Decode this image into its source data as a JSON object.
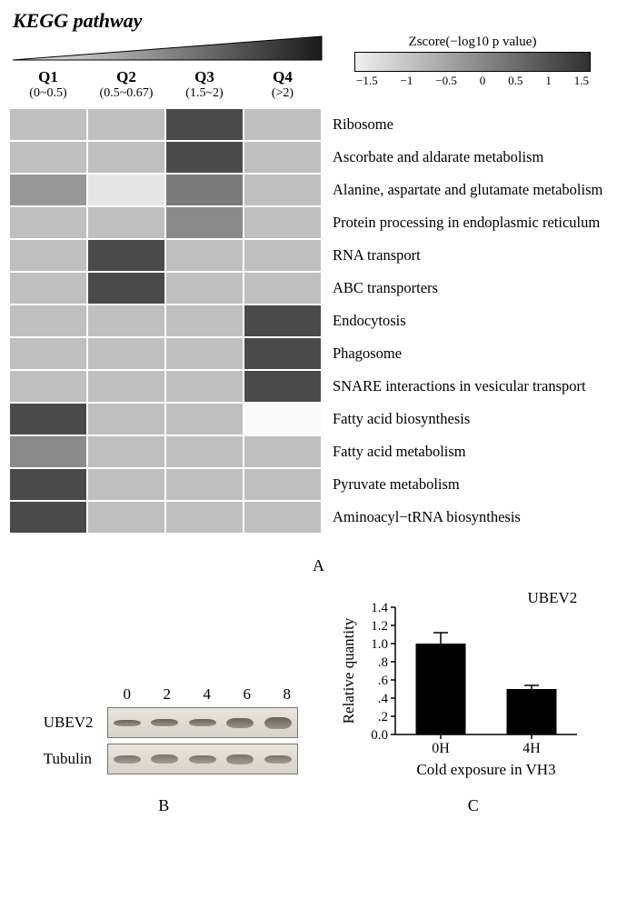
{
  "panelA": {
    "title": "KEGG pathway",
    "quarters": [
      {
        "label": "Q1",
        "range": "(0~0.5)"
      },
      {
        "label": "Q2",
        "range": "(0.5~0.67)"
      },
      {
        "label": "Q3",
        "range": "(1.5~2)"
      },
      {
        "label": "Q4",
        "range": "(>2)"
      }
    ],
    "zscore": {
      "label": "Zscore(−log10 p value)",
      "gradient_start": "#f0f0f0",
      "gradient_end": "#303030",
      "ticks": [
        "−1.5",
        "−1",
        "−0.5",
        "0",
        "0.5",
        "1",
        "1.5"
      ]
    },
    "heatmap": {
      "cell_border": "#ffffff",
      "rows": [
        {
          "label": "Ribosome",
          "cells": [
            "#bfbfbf",
            "#bfbfbf",
            "#4a4a4a",
            "#bfbfbf"
          ]
        },
        {
          "label": "Ascorbate and aldarate metabolism",
          "cells": [
            "#bfbfbf",
            "#bfbfbf",
            "#4a4a4a",
            "#bfbfbf"
          ]
        },
        {
          "label": "Alanine, aspartate and glutamate metabolism",
          "cells": [
            "#989898",
            "#e6e6e6",
            "#7a7a7a",
            "#bfbfbf"
          ]
        },
        {
          "label": "Protein processing in endoplasmic reticulum",
          "cells": [
            "#bfbfbf",
            "#bfbfbf",
            "#8a8a8a",
            "#bfbfbf"
          ]
        },
        {
          "label": "RNA transport",
          "cells": [
            "#bfbfbf",
            "#4a4a4a",
            "#bfbfbf",
            "#bfbfbf"
          ]
        },
        {
          "label": "ABC transporters",
          "cells": [
            "#bfbfbf",
            "#4a4a4a",
            "#bfbfbf",
            "#bfbfbf"
          ]
        },
        {
          "label": "Endocytosis",
          "cells": [
            "#bfbfbf",
            "#bfbfbf",
            "#bfbfbf",
            "#4a4a4a"
          ]
        },
        {
          "label": "Phagosome",
          "cells": [
            "#bfbfbf",
            "#bfbfbf",
            "#bfbfbf",
            "#4a4a4a"
          ]
        },
        {
          "label": "SNARE interactions in vesicular transport",
          "cells": [
            "#bfbfbf",
            "#bfbfbf",
            "#bfbfbf",
            "#4a4a4a"
          ]
        },
        {
          "label": "Fatty acid biosynthesis",
          "cells": [
            "#4a4a4a",
            "#bfbfbf",
            "#bfbfbf",
            "#fafafa"
          ]
        },
        {
          "label": "Fatty acid metabolism",
          "cells": [
            "#8a8a8a",
            "#bfbfbf",
            "#bfbfbf",
            "#bfbfbf"
          ]
        },
        {
          "label": "Pyruvate metabolism",
          "cells": [
            "#4a4a4a",
            "#bfbfbf",
            "#bfbfbf",
            "#bfbfbf"
          ]
        },
        {
          "label": "Aminoacyl−tRNA biosynthesis",
          "cells": [
            "#4a4a4a",
            "#bfbfbf",
            "#bfbfbf",
            "#bfbfbf"
          ]
        }
      ]
    },
    "letter": "A"
  },
  "panelB": {
    "timepoints": [
      "0",
      "2",
      "4",
      "6",
      "8"
    ],
    "tracks": [
      {
        "name": "UBEV2",
        "band_color_low": "#9a938a",
        "band_color_high": "#6a6258",
        "band_heights": [
          7,
          8,
          8,
          11,
          13
        ]
      },
      {
        "name": "Tubulin",
        "band_color_low": "#a49d94",
        "band_color_high": "#7a7268",
        "band_heights": [
          9,
          10,
          9,
          11,
          9
        ]
      }
    ],
    "bg_low": "#e8e4dc",
    "bg_high": "#d8d4ca",
    "letter": "B"
  },
  "panelC": {
    "title": "UBEV2",
    "ylabel": "Relative quantity",
    "xlabel": "Cold exposure in VH3",
    "categories": [
      "0H",
      "4H"
    ],
    "values": [
      1.0,
      0.5
    ],
    "errors": [
      0.12,
      0.04
    ],
    "bar_color": "#000000",
    "ylim": [
      0.0,
      1.4
    ],
    "yticks": [
      "0.0",
      ".2",
      ".4",
      ".6",
      ".8",
      "1.0",
      "1.2",
      "1.4"
    ],
    "axis_color": "#000000",
    "letter": "C"
  }
}
